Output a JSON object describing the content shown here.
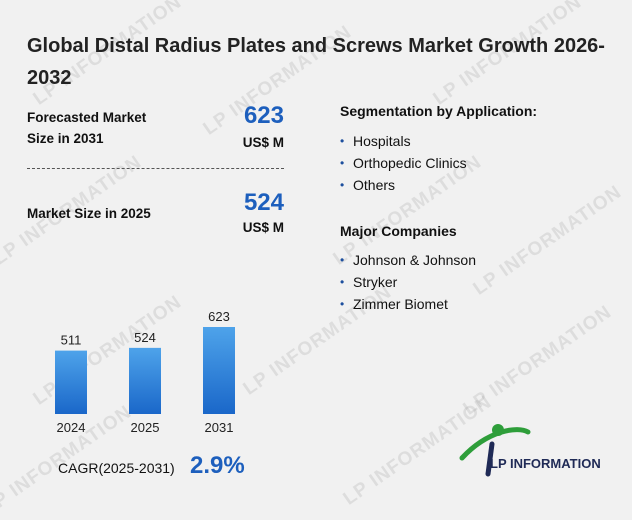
{
  "title": "Global Distal Radius Plates and Screws Market Growth 2026-2032",
  "metrics": {
    "forecast": {
      "label_line1": "Forecasted Market",
      "label_line2": "Size in 2031",
      "value": "623",
      "unit": "US$ M"
    },
    "current": {
      "label": "Market Size in 2025",
      "value": "524",
      "unit": "US$ M"
    }
  },
  "segmentation": {
    "title": "Segmentation by Application:",
    "items": [
      "Hospitals",
      "Orthopedic Clinics",
      "Others"
    ]
  },
  "companies": {
    "title": "Major Companies",
    "items": [
      "Johnson & Johnson",
      "Stryker",
      "Zimmer Biomet"
    ]
  },
  "cagr": {
    "label": "CAGR(2025-2031)",
    "value": "2.9%"
  },
  "brand": {
    "name": "LP INFORMATION",
    "watermark": "LP INFORMATION"
  },
  "colors": {
    "accent": "#1d5fbd",
    "bar_top": "#4ea3ea",
    "bar_bottom": "#1a67c9",
    "logo_green": "#2e9e3a",
    "logo_navy": "#1f2a56"
  },
  "chart_data": {
    "type": "bar",
    "categories": [
      "2024",
      "2025",
      "2031"
    ],
    "values": [
      511,
      524,
      623
    ],
    "title": "",
    "xlabel": "",
    "ylabel": "",
    "grid": false,
    "legend": "none"
  }
}
